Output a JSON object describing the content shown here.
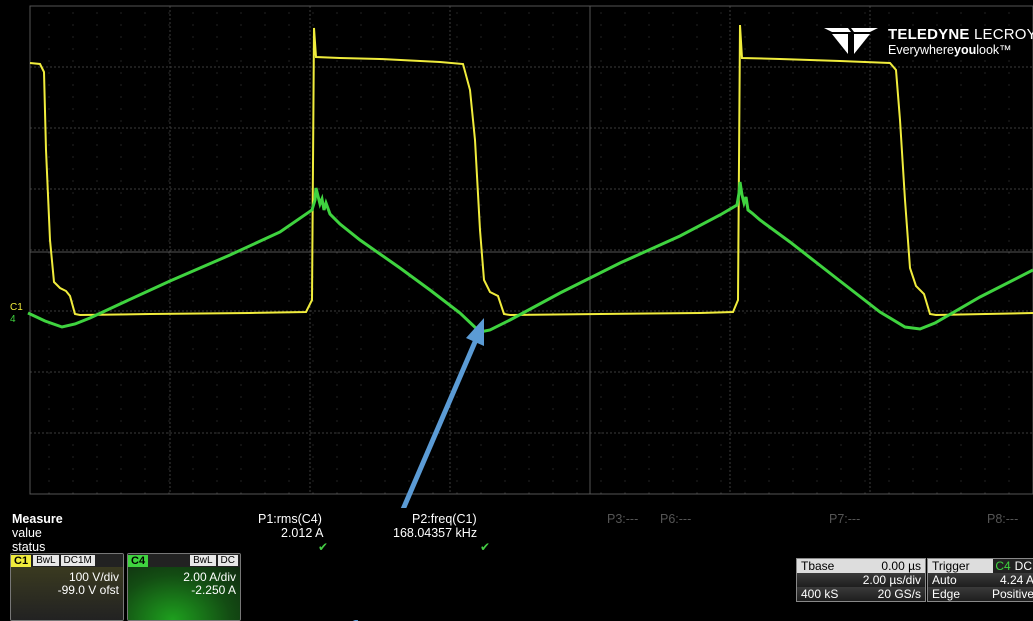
{
  "logo": {
    "brand_bold": "TELEDYNE",
    "brand_thin": " LECROY",
    "tagline_a": "Everywhere",
    "tagline_b": "you",
    "tagline_c": "look"
  },
  "channel_markers": {
    "c1": "C1",
    "c4": "4"
  },
  "measure": {
    "title": "Measure",
    "row_value": "value",
    "row_status": "status",
    "p1_label": "P1:rms(C4)",
    "p1_value": "2.012 A",
    "p2_label": "P2:freq(C1)",
    "p2_value": "168.04357 kHz",
    "p3_label": "P3:---",
    "p6_label": "P6:---",
    "p7_label": "P7:---",
    "p8_label": "P8:---"
  },
  "channels": {
    "c1": {
      "name": "C1",
      "bwl": "BwL",
      "coupling": "DC1M",
      "scale": "100 V/div",
      "offset": "-99.0 V ofst",
      "color": "#f0ec3c"
    },
    "c4": {
      "name": "C4",
      "bwl": "BwL",
      "coupling": "DC",
      "scale": "2.00 A/div",
      "offset": "-2.250 A",
      "color": "#3fd33f"
    }
  },
  "timebase": {
    "label": "Tbase",
    "delay": "0.00 µs",
    "scale": "2.00 µs/div",
    "samples": "400 kS",
    "rate": "20 GS/s"
  },
  "trigger": {
    "label": "Trigger",
    "source": "C4",
    "coupling": "DC",
    "mode": "Auto",
    "level": "4.24 A",
    "type": "Edge",
    "slope": "Positive"
  }
}
